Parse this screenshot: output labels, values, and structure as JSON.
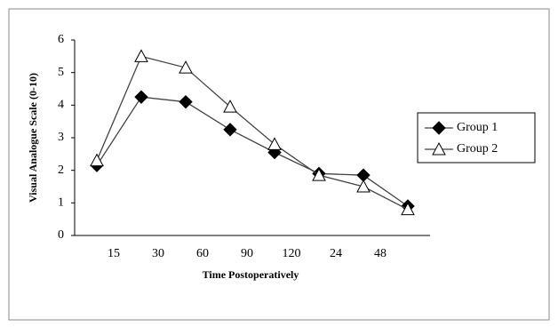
{
  "chart_data": {
    "type": "line",
    "x_label": "Time Postoperatively",
    "y_label": "Visual Analogue Scale (0-10)",
    "categories": [
      "15",
      "30",
      "60",
      "90",
      "120",
      "24",
      "48",
      null
    ],
    "series": [
      {
        "name": "Group 1",
        "color": "#000000",
        "marker": "diamond",
        "values": [
          2.15,
          4.25,
          4.1,
          3.25,
          2.55,
          1.9,
          1.85,
          0.9
        ]
      },
      {
        "name": "Group 2",
        "color": "#000000",
        "marker": "triangle",
        "values": [
          2.3,
          5.5,
          5.15,
          3.95,
          2.8,
          1.85,
          1.5,
          0.8
        ]
      }
    ],
    "ylim": [
      0,
      6
    ],
    "yticks": [
      0,
      1,
      2,
      3,
      4,
      5,
      6
    ],
    "grid": false,
    "legend": "right"
  }
}
